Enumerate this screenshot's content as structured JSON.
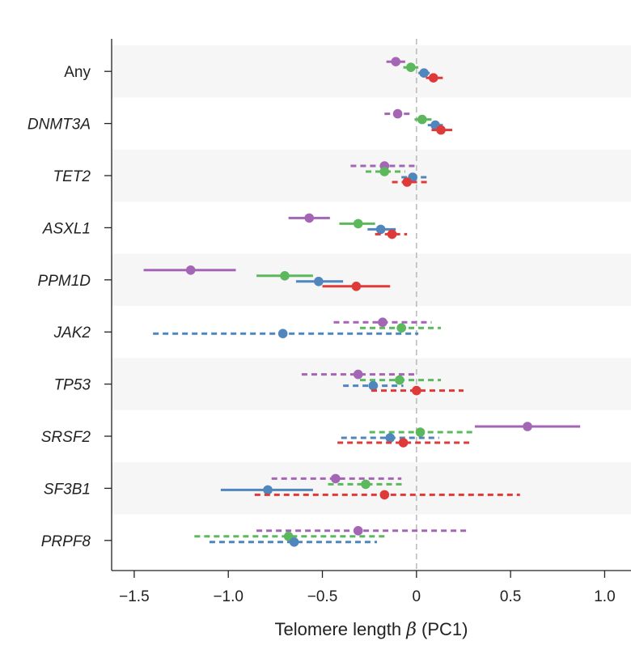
{
  "chart_data": {
    "type": "forest",
    "xlabel_prefix": "Telomere length ",
    "xlabel_symbol": "β",
    "xlabel_suffix": " (PC1)",
    "xlim": [
      -1.62,
      1.14
    ],
    "xticks": [
      -1.5,
      -1.0,
      -0.5,
      0,
      0.5,
      1.0
    ],
    "xtick_labels": [
      "−1.5",
      "−1.0",
      "−0.5",
      "0",
      "0.5",
      "1.0"
    ],
    "reference_line": 0,
    "series_colors": [
      "#a565b5",
      "#5cb85c",
      "#4f86bd",
      "#df3a3a"
    ],
    "band_color": "#f6f6f6",
    "rows": [
      {
        "label": "Any",
        "italic": false,
        "estimates": [
          {
            "beta": -0.11,
            "lo": -0.16,
            "hi": -0.06,
            "sig": true
          },
          {
            "beta": -0.03,
            "lo": -0.07,
            "hi": 0.01,
            "sig": true
          },
          {
            "beta": 0.04,
            "lo": 0.01,
            "hi": 0.07,
            "sig": true
          },
          {
            "beta": 0.09,
            "lo": 0.05,
            "hi": 0.14,
            "sig": true
          }
        ]
      },
      {
        "label": "DNMT3A",
        "italic": true,
        "estimates": [
          {
            "beta": -0.1,
            "lo": -0.17,
            "hi": -0.03,
            "sig": false
          },
          {
            "beta": 0.03,
            "lo": -0.01,
            "hi": 0.08,
            "sig": true
          },
          {
            "beta": 0.1,
            "lo": 0.06,
            "hi": 0.14,
            "sig": true
          },
          {
            "beta": 0.13,
            "lo": 0.08,
            "hi": 0.19,
            "sig": true
          }
        ]
      },
      {
        "label": "TET2",
        "italic": true,
        "estimates": [
          {
            "beta": -0.17,
            "lo": -0.35,
            "hi": 0.01,
            "sig": false
          },
          {
            "beta": -0.17,
            "lo": -0.27,
            "hi": -0.06,
            "sig": false
          },
          {
            "beta": -0.02,
            "lo": -0.08,
            "hi": 0.06,
            "sig": false
          },
          {
            "beta": -0.05,
            "lo": -0.13,
            "hi": 0.06,
            "sig": false
          }
        ]
      },
      {
        "label": "ASXL1",
        "italic": true,
        "estimates": [
          {
            "beta": -0.57,
            "lo": -0.68,
            "hi": -0.46,
            "sig": true
          },
          {
            "beta": -0.31,
            "lo": -0.41,
            "hi": -0.22,
            "sig": true
          },
          {
            "beta": -0.19,
            "lo": -0.26,
            "hi": -0.11,
            "sig": true
          },
          {
            "beta": -0.13,
            "lo": -0.22,
            "hi": -0.05,
            "sig": false
          }
        ]
      },
      {
        "label": "PPM1D",
        "italic": true,
        "estimates": [
          {
            "beta": -1.2,
            "lo": -1.45,
            "hi": -0.96,
            "sig": true
          },
          {
            "beta": -0.7,
            "lo": -0.85,
            "hi": -0.55,
            "sig": true
          },
          {
            "beta": -0.52,
            "lo": -0.64,
            "hi": -0.39,
            "sig": true
          },
          {
            "beta": -0.32,
            "lo": -0.5,
            "hi": -0.14,
            "sig": true
          }
        ]
      },
      {
        "label": "JAK2",
        "italic": true,
        "estimates": [
          {
            "beta": -0.18,
            "lo": -0.44,
            "hi": 0.08,
            "sig": false
          },
          {
            "beta": -0.08,
            "lo": -0.3,
            "hi": 0.13,
            "sig": false
          },
          {
            "beta": -0.71,
            "lo": -1.4,
            "hi": 0.01,
            "sig": false
          }
        ]
      },
      {
        "label": "TP53",
        "italic": true,
        "estimates": [
          {
            "beta": -0.31,
            "lo": -0.61,
            "hi": -0.01,
            "sig": false
          },
          {
            "beta": -0.09,
            "lo": -0.3,
            "hi": 0.13,
            "sig": false
          },
          {
            "beta": -0.23,
            "lo": -0.39,
            "hi": -0.07,
            "sig": false
          },
          {
            "beta": 0.0,
            "lo": -0.24,
            "hi": 0.25,
            "sig": false
          }
        ]
      },
      {
        "label": "SRSF2",
        "italic": true,
        "estimates": [
          {
            "beta": 0.59,
            "lo": 0.31,
            "hi": 0.87,
            "sig": true
          },
          {
            "beta": 0.02,
            "lo": -0.25,
            "hi": 0.3,
            "sig": false
          },
          {
            "beta": -0.14,
            "lo": -0.4,
            "hi": 0.12,
            "sig": false
          },
          {
            "beta": -0.07,
            "lo": -0.42,
            "hi": 0.28,
            "sig": false
          }
        ]
      },
      {
        "label": "SF3B1",
        "italic": true,
        "estimates": [
          {
            "beta": -0.43,
            "lo": -0.77,
            "hi": -0.08,
            "sig": false
          },
          {
            "beta": -0.27,
            "lo": -0.47,
            "hi": -0.07,
            "sig": false
          },
          {
            "beta": -0.79,
            "lo": -1.04,
            "hi": -0.55,
            "sig": true
          },
          {
            "beta": -0.17,
            "lo": -0.86,
            "hi": 0.55,
            "sig": false
          }
        ]
      },
      {
        "label": "PRPF8",
        "italic": true,
        "estimates": [
          {
            "beta": -0.31,
            "lo": -0.85,
            "hi": 0.27,
            "sig": false
          },
          {
            "beta": -0.68,
            "lo": -1.18,
            "hi": -0.17,
            "sig": false
          },
          {
            "beta": -0.65,
            "lo": -1.1,
            "hi": -0.21,
            "sig": false
          }
        ]
      }
    ]
  }
}
